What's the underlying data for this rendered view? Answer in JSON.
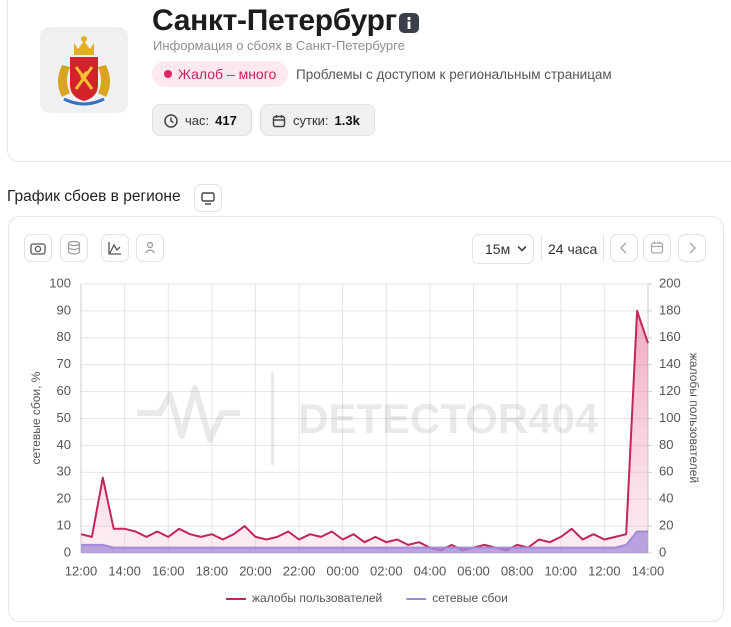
{
  "header": {
    "title": "Санкт-Петербург",
    "subtitle": "Информация о сбоях в Санкт-Петербурге",
    "badge": "Жалоб – много",
    "problem": "Проблемы с доступом к региональным страницам",
    "stats": [
      {
        "label": "час:",
        "value": 417
      },
      {
        "label": "сутки:",
        "value": "1.3k"
      }
    ]
  },
  "section_title": "График сбоев в регионе",
  "toolbar": {
    "interval": "15м",
    "period": "24 часа"
  },
  "chart_data": {
    "type": "line",
    "watermark": "DETECTOR404",
    "ylabel": "сетевые сбои, %",
    "y2label": "жалобы пользователей",
    "categories": [
      "12:00",
      null,
      null,
      null,
      "14:00",
      null,
      null,
      null,
      "16:00",
      null,
      null,
      null,
      "18:00",
      null,
      null,
      null,
      "20:00",
      null,
      null,
      null,
      "22:00",
      null,
      null,
      null,
      "00:00",
      null,
      null,
      null,
      "02:00",
      null,
      null,
      null,
      "04:00",
      null,
      null,
      null,
      "06:00",
      null,
      null,
      null,
      "08:00",
      null,
      null,
      null,
      "10:00",
      null,
      null,
      null,
      "12:00",
      null,
      null,
      null,
      "14:00"
    ],
    "series": [
      {
        "name": "жалобы пользователей",
        "color": "#c2255c",
        "axis": "y2",
        "area": true,
        "values": [
          14,
          12,
          56,
          18,
          18,
          16,
          12,
          16,
          12,
          18,
          14,
          12,
          14,
          10,
          14,
          20,
          12,
          10,
          12,
          16,
          10,
          14,
          12,
          16,
          10,
          14,
          8,
          12,
          8,
          10,
          6,
          8,
          4,
          2,
          6,
          2,
          4,
          6,
          4,
          2,
          6,
          4,
          10,
          8,
          12,
          18,
          10,
          14,
          10,
          12,
          14,
          180,
          156
        ]
      },
      {
        "name": "сетевые сбои",
        "color": "#a38ad8",
        "axis": "y",
        "area": true,
        "values": [
          3,
          3,
          3,
          2,
          2,
          2,
          2,
          2,
          2,
          2,
          2,
          2,
          2,
          2,
          2,
          2,
          2,
          2,
          2,
          2,
          2,
          2,
          2,
          2,
          2,
          2,
          2,
          2,
          2,
          2,
          2,
          2,
          2,
          2,
          2,
          2,
          2,
          2,
          2,
          2,
          2,
          2,
          2,
          2,
          2,
          2,
          2,
          2,
          2,
          2,
          3,
          8,
          8
        ]
      }
    ],
    "ylim": [
      0,
      100
    ],
    "yticks": [
      0,
      10,
      20,
      30,
      40,
      50,
      60,
      70,
      80,
      90,
      100
    ],
    "y2lim": [
      0,
      200
    ],
    "y2ticks": [
      0,
      20,
      40,
      60,
      80,
      100,
      120,
      140,
      160,
      180,
      200
    ],
    "grid": true,
    "legend": "bottom"
  }
}
